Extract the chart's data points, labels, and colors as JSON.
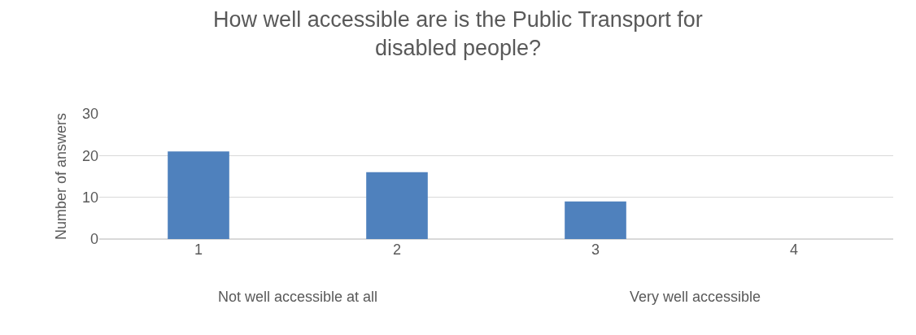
{
  "chart_data": {
    "type": "bar",
    "title": "How well accessible are is the Public Transport for\ndisabled people?",
    "ylabel": "Number of answers",
    "categories": [
      "1",
      "2",
      "3",
      "4"
    ],
    "values": [
      21,
      16,
      9,
      0
    ],
    "color": "#4f81bd",
    "ylim": [
      0,
      30
    ],
    "yticks": [
      0,
      10,
      20,
      30
    ],
    "grid": "y",
    "legend": false,
    "annotations": [
      "Not well accessible at all",
      "Very well accessible"
    ]
  }
}
